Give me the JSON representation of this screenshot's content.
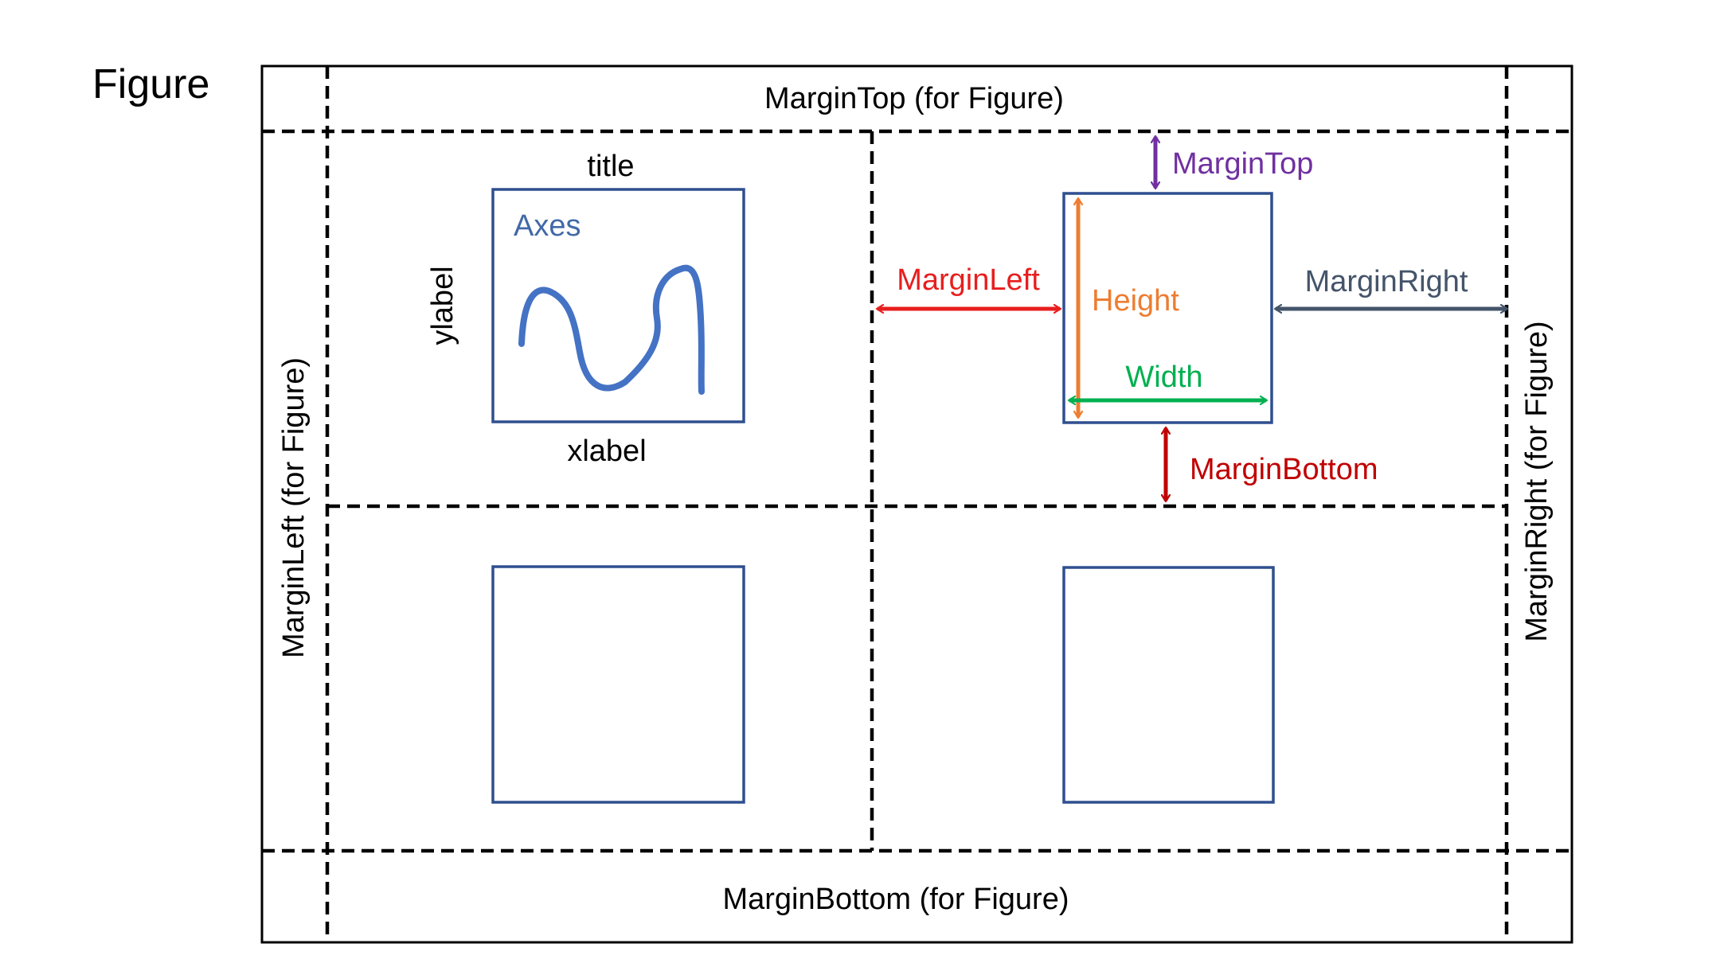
{
  "figure_label": "Figure",
  "figure_margins": {
    "top": "MarginTop (for Figure)",
    "bottom": "MarginBottom (for Figure)",
    "left": "MarginLeft (for Figure)",
    "right": "MarginRight (for Figure)"
  },
  "axes_example": {
    "title": "title",
    "axes": "Axes",
    "xlabel": "xlabel",
    "ylabel": "ylabel"
  },
  "axes_dimensions": {
    "margin_top": "MarginTop",
    "margin_left": "MarginLeft",
    "margin_right": "MarginRight",
    "margin_bottom": "MarginBottom",
    "height": "Height",
    "width": "Width"
  },
  "colors": {
    "frame": "#000000",
    "axes_box": "#2F4F8F",
    "curve": "#4472C4",
    "axes_label": "#4169A8",
    "margin_top": "#7030A0",
    "margin_left": "#E81E1E",
    "margin_right": "#44546A",
    "margin_bottom": "#C00000",
    "height": "#ED7D31",
    "width": "#00B050"
  }
}
